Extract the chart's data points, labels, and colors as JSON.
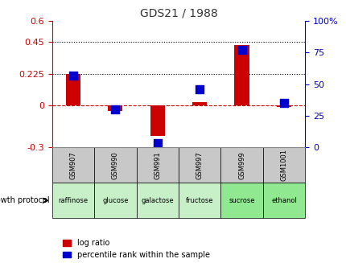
{
  "title": "GDS21 / 1988",
  "samples": [
    "GSM907",
    "GSM990",
    "GSM991",
    "GSM997",
    "GSM999",
    "GSM1001"
  ],
  "protocols": [
    "raffinose",
    "glucose",
    "galactose",
    "fructose",
    "sucrose",
    "ethanol"
  ],
  "protocol_colors": [
    "#c8f0c8",
    "#c8f0c8",
    "#c8f0c8",
    "#c8f0c8",
    "#90e890",
    "#90e890"
  ],
  "log_ratios": [
    0.225,
    -0.04,
    -0.22,
    0.02,
    0.43,
    -0.01
  ],
  "percentile_ranks": [
    57,
    30,
    3,
    46,
    77,
    35
  ],
  "left_ylim": [
    -0.3,
    0.6
  ],
  "right_ylim": [
    0,
    100
  ],
  "left_yticks": [
    -0.3,
    0,
    0.225,
    0.45,
    0.6
  ],
  "right_yticks": [
    0,
    25,
    50,
    75,
    100
  ],
  "left_ytick_labels": [
    "-0.3",
    "0",
    "0.225",
    "0.45",
    "0.6"
  ],
  "right_ytick_labels": [
    "0",
    "25",
    "50",
    "75",
    "100%"
  ],
  "hlines": [
    0.225,
    0.45
  ],
  "bar_color": "#cc0000",
  "dot_color": "#0000cc",
  "zero_line_color": "#cc0000",
  "background_color": "#ffffff",
  "grid_color": "#cccccc",
  "title_color": "#333333",
  "left_axis_color": "#cc0000",
  "right_axis_color": "#0000cc",
  "bar_width": 0.35,
  "dot_size": 60,
  "legend_items": [
    "log ratio",
    "percentile rank within the sample"
  ]
}
